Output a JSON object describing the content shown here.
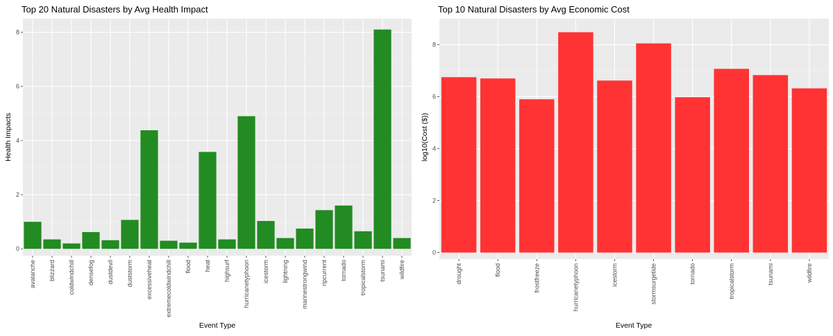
{
  "colors": {
    "panel_bg": "#ebebeb",
    "grid_major": "#ffffff",
    "grid_minor": "#f5f5f5",
    "tick_text": "#4d4d4d",
    "health_bar": "#228b22",
    "cost_bar": "#ff3333"
  },
  "chart_data": [
    {
      "type": "bar",
      "title": "Top 20 Natural Disasters by Avg Health Impact",
      "xlabel": "Event Type",
      "ylabel": "Health Impacts",
      "ylim": [
        -0.25,
        8.5
      ],
      "yticks": [
        "0",
        "2",
        "4",
        "6",
        "8"
      ],
      "grid": true,
      "categories": [
        "avalanche",
        "blizzard",
        "coldwindchill",
        "densefog",
        "dustdevil",
        "duststorm",
        "excessiveheat",
        "extremecoldwindchill",
        "flood",
        "heat",
        "highsurf",
        "hurricanetyphoon",
        "icestorm",
        "lightning",
        "marinestrongwind",
        "ripcurrent",
        "tornado",
        "tropicalstorm",
        "tsunami",
        "wildfire"
      ],
      "values": [
        1.0,
        0.35,
        0.2,
        0.62,
        0.32,
        1.07,
        4.38,
        0.3,
        0.23,
        3.58,
        0.35,
        4.9,
        1.03,
        0.4,
        0.75,
        1.43,
        1.6,
        0.65,
        8.1,
        0.4
      ]
    },
    {
      "type": "bar",
      "title": "Top 10 Natural Disasters by Avg Economic Cost",
      "xlabel": "Event Type",
      "ylabel": "log10(Cost ($))",
      "ylim": [
        -0.25,
        9.0
      ],
      "yticks": [
        "0",
        "2",
        "4",
        "6",
        "8"
      ],
      "grid": true,
      "categories": [
        "drought",
        "flood",
        "frostfreeze",
        "hurricanetyphoon",
        "icestorm",
        "stormsurgetide",
        "tornado",
        "tropicalstorm",
        "tsunami",
        "wildfire"
      ],
      "values": [
        6.75,
        6.7,
        5.9,
        8.48,
        6.62,
        8.05,
        5.98,
        7.07,
        6.83,
        6.32
      ]
    }
  ]
}
